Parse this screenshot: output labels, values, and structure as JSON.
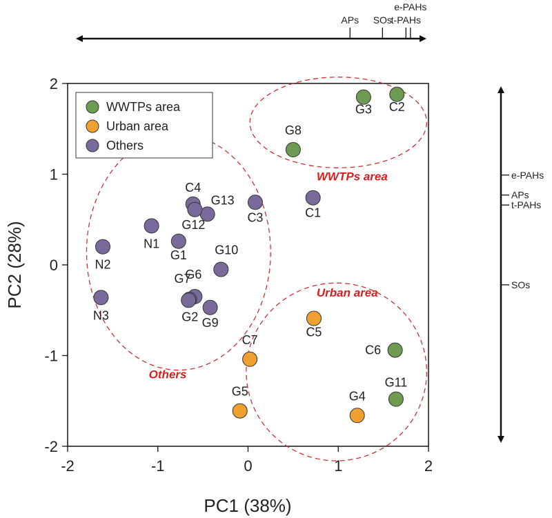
{
  "chart_data": {
    "type": "scatter",
    "title": "",
    "xlabel": "PC1 (38%)",
    "ylabel": "PC2 (28%)",
    "xlim": [
      -2,
      2
    ],
    "ylim": [
      -2,
      2
    ],
    "xticks": [
      -2,
      -1,
      0,
      1,
      2
    ],
    "yticks": [
      -2,
      -1,
      0,
      1,
      2
    ],
    "grid": false,
    "legend_position": "top-left",
    "groups": [
      {
        "key": "wwtp",
        "name": "WWTPs area",
        "color": "#6e9a52"
      },
      {
        "key": "urban",
        "name": "Urban area",
        "color": "#f0a030"
      },
      {
        "key": "other",
        "name": "Others",
        "color": "#7a6a9c"
      }
    ],
    "points": [
      {
        "label": "G3",
        "x": 1.28,
        "y": 1.85,
        "group": "wwtp"
      },
      {
        "label": "C2",
        "x": 1.65,
        "y": 1.88,
        "group": "wwtp"
      },
      {
        "label": "G8",
        "x": 0.5,
        "y": 1.27,
        "group": "wwtp"
      },
      {
        "label": "C6",
        "x": 1.63,
        "y": -0.94,
        "group": "wwtp"
      },
      {
        "label": "G11",
        "x": 1.64,
        "y": -1.48,
        "group": "wwtp"
      },
      {
        "label": "C5",
        "x": 0.73,
        "y": -0.59,
        "group": "urban"
      },
      {
        "label": "C7",
        "x": 0.02,
        "y": -1.04,
        "group": "urban"
      },
      {
        "label": "G5",
        "x": -0.09,
        "y": -1.61,
        "group": "urban"
      },
      {
        "label": "G4",
        "x": 1.21,
        "y": -1.66,
        "group": "urban"
      },
      {
        "label": "C4",
        "x": -0.61,
        "y": 0.67,
        "group": "other"
      },
      {
        "label": "G13",
        "x": -0.45,
        "y": 0.56,
        "group": "other"
      },
      {
        "label": "G12",
        "x": -0.59,
        "y": 0.61,
        "group": "other"
      },
      {
        "label": "C3",
        "x": 0.08,
        "y": 0.69,
        "group": "other"
      },
      {
        "label": "C1",
        "x": 0.72,
        "y": 0.74,
        "group": "other"
      },
      {
        "label": "N1",
        "x": -1.07,
        "y": 0.43,
        "group": "other"
      },
      {
        "label": "G1",
        "x": -0.77,
        "y": 0.26,
        "group": "other"
      },
      {
        "label": "N2",
        "x": -1.61,
        "y": 0.2,
        "group": "other"
      },
      {
        "label": "G10",
        "x": -0.3,
        "y": -0.05,
        "group": "other"
      },
      {
        "label": "G6",
        "x": -0.59,
        "y": -0.35,
        "group": "other"
      },
      {
        "label": "G7",
        "x": -0.65,
        "y": -0.38,
        "group": "other"
      },
      {
        "label": "G2",
        "x": -0.66,
        "y": -0.39,
        "group": "other"
      },
      {
        "label": "G9",
        "x": -0.42,
        "y": -0.47,
        "group": "other"
      },
      {
        "label": "N3",
        "x": -1.63,
        "y": -0.36,
        "group": "other"
      }
    ],
    "regions": [
      {
        "name": "WWTPs area",
        "cx": 1.0,
        "cy": 1.57,
        "rx": 0.98,
        "ry": 0.5,
        "label_x": 0.76,
        "label_y": 0.93
      },
      {
        "name": "Urban area",
        "cx": 0.98,
        "cy": -1.18,
        "rx": 1.0,
        "ry": 0.98,
        "label_x": 0.76,
        "label_y": -0.35
      },
      {
        "name": "Others",
        "cx": -0.77,
        "cy": 0.14,
        "rx": 1.02,
        "ry": 1.3,
        "label_x": -1.1,
        "label_y": -1.25
      }
    ],
    "top_axis": {
      "variables": [
        {
          "name": "APs",
          "value": 1.13
        },
        {
          "name": "SOs",
          "value": 1.49
        },
        {
          "name": "t-PAHs",
          "value": 1.75
        },
        {
          "name": "e-PAHs",
          "value": 1.8
        }
      ]
    },
    "right_axis": {
      "variables": [
        {
          "name": "e-PAHs",
          "value": 0.99
        },
        {
          "name": "APs",
          "value": 0.77
        },
        {
          "name": "t-PAHs",
          "value": 0.66
        },
        {
          "name": "SOs",
          "value": -0.22
        }
      ]
    }
  }
}
